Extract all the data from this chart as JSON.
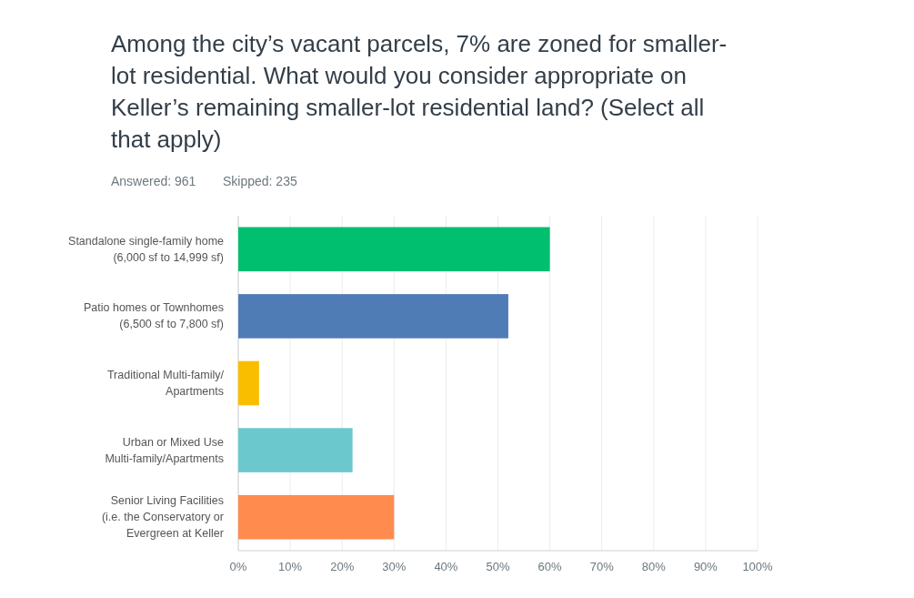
{
  "chart_data": {
    "type": "bar",
    "orientation": "horizontal",
    "title": "Among the city’s vacant parcels, 7% are zoned for smaller-lot residential. What would you consider appropriate on Keller’s remaining smaller-lot residential land? (Select all that apply)",
    "annotations": [
      "Answered: 961",
      "Skipped: 235"
    ],
    "categories": [
      "Standalone single-family home\n(6,000 sf to 14,999 sf)",
      "Patio homes or Townhomes\n(6,500 sf to 7,800 sf)",
      "Traditional Multi-family/\nApartments",
      "Urban or Mixed Use\nMulti-family/Apartments",
      "Senior Living Facilities\n(i.e. the Conservatory or\nEvergreen at Keller"
    ],
    "values": [
      60,
      52,
      4,
      22,
      30
    ],
    "colors": [
      "#00bf6f",
      "#507cb6",
      "#f9be00",
      "#6bc8cd",
      "#ff8b4f"
    ],
    "xlim": [
      0,
      100
    ],
    "xticks": [
      {
        "value": 0,
        "label": "0%"
      },
      {
        "value": 10,
        "label": "10%"
      },
      {
        "value": 20,
        "label": "20%"
      },
      {
        "value": 30,
        "label": "30%"
      },
      {
        "value": 40,
        "label": "40%"
      },
      {
        "value": 50,
        "label": "50%"
      },
      {
        "value": 60,
        "label": "60%"
      },
      {
        "value": 70,
        "label": "70%"
      },
      {
        "value": 80,
        "label": "80%"
      },
      {
        "value": 90,
        "label": "90%"
      },
      {
        "value": 100,
        "label": "100%"
      }
    ],
    "grid": "x"
  }
}
